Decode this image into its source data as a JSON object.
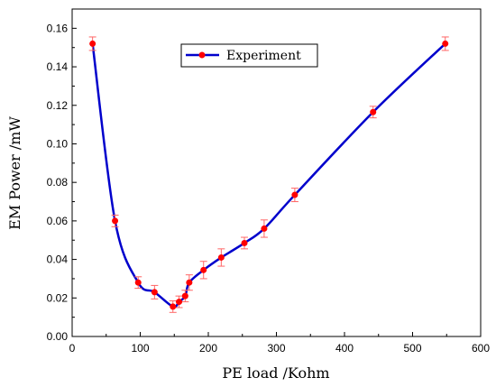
{
  "chart_data": {
    "type": "line",
    "xlabel": "PE load /Kohm",
    "ylabel": "EM Power /mW",
    "xlim": [
      0,
      600
    ],
    "ylim": [
      0,
      0.17
    ],
    "x_ticks": [
      0,
      100,
      200,
      300,
      400,
      500,
      600
    ],
    "x_tick_labels": [
      "0",
      "100",
      "200",
      "300",
      "400",
      "500",
      "600"
    ],
    "y_ticks": [
      0,
      0.02,
      0.04,
      0.06,
      0.08,
      0.1,
      0.12,
      0.14,
      0.16
    ],
    "y_tick_labels": [
      "0.00",
      "0.02",
      "0.04",
      "0.06",
      "0.08",
      "0.10",
      "0.12",
      "0.14",
      "0.16"
    ],
    "grid": false,
    "legend_position": "top-center",
    "series": [
      {
        "name": "Experiment",
        "line_color": "#0000cc",
        "marker_color": "#ff0000",
        "errorbar_color": "#ff6666",
        "x": [
          30,
          63,
          97,
          121,
          148,
          157,
          166,
          172,
          193,
          219,
          253,
          282,
          327,
          442,
          548
        ],
        "y": [
          0.152,
          0.06,
          0.028,
          0.023,
          0.0155,
          0.018,
          0.021,
          0.028,
          0.0345,
          0.041,
          0.0485,
          0.056,
          0.0735,
          0.1165,
          0.152
        ],
        "error": [
          0.0035,
          0.003,
          0.003,
          0.0035,
          0.003,
          0.003,
          0.003,
          0.004,
          0.0045,
          0.0045,
          0.003,
          0.0045,
          0.0035,
          0.003,
          0.0035
        ]
      }
    ]
  }
}
